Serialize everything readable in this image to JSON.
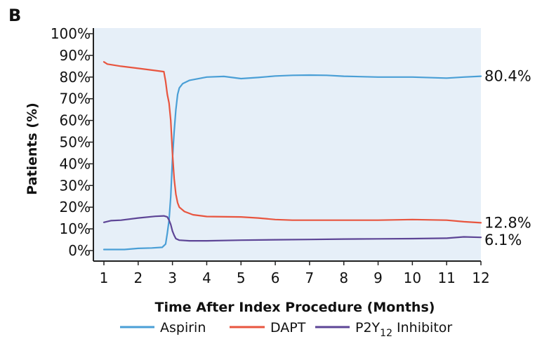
{
  "panel_label": "B",
  "colors": {
    "plot_background": "#e6eff8",
    "axis": "#222222",
    "aspirin": "#4a9fd6",
    "dapt": "#e8553f",
    "p2y12": "#5d4596"
  },
  "chart_data": {
    "type": "line",
    "title": "",
    "xlabel": "Time After Index Procedure (Months)",
    "ylabel": "Patients (%)",
    "xlim": [
      1,
      12
    ],
    "ylim": [
      0,
      100
    ],
    "grid": false,
    "legend_position": "bottom",
    "x_ticks": [
      1,
      2,
      3,
      4,
      5,
      6,
      7,
      8,
      9,
      10,
      11,
      12
    ],
    "y_ticks": [
      0,
      10,
      20,
      30,
      40,
      50,
      60,
      70,
      80,
      90,
      100
    ],
    "y_tick_labels": [
      "0%",
      "10%",
      "20%",
      "30%",
      "40%",
      "50%",
      "60%",
      "70%",
      "80%",
      "90%",
      "100%"
    ],
    "series": [
      {
        "name": "Aspirin",
        "color": "#4a9fd6",
        "end_label": "80.4%",
        "points": [
          [
            1.0,
            0.5
          ],
          [
            1.6,
            0.5
          ],
          [
            2.0,
            1.0
          ],
          [
            2.4,
            1.2
          ],
          [
            2.7,
            1.5
          ],
          [
            2.8,
            3.0
          ],
          [
            2.85,
            8.0
          ],
          [
            2.9,
            14.0
          ],
          [
            2.95,
            25.0
          ],
          [
            3.0,
            42.0
          ],
          [
            3.05,
            55.0
          ],
          [
            3.1,
            65.0
          ],
          [
            3.15,
            72.0
          ],
          [
            3.2,
            75.0
          ],
          [
            3.3,
            77.0
          ],
          [
            3.5,
            78.5
          ],
          [
            4.0,
            80.0
          ],
          [
            4.5,
            80.3
          ],
          [
            5.0,
            79.3
          ],
          [
            5.5,
            79.8
          ],
          [
            6.0,
            80.5
          ],
          [
            6.5,
            80.8
          ],
          [
            7.0,
            80.9
          ],
          [
            7.5,
            80.8
          ],
          [
            8.0,
            80.4
          ],
          [
            9.0,
            80.0
          ],
          [
            10.0,
            80.0
          ],
          [
            11.0,
            79.5
          ],
          [
            11.5,
            80.0
          ],
          [
            12.0,
            80.4
          ]
        ]
      },
      {
        "name": "DAPT",
        "color": "#e8553f",
        "end_label": "12.8%",
        "points": [
          [
            1.0,
            87.0
          ],
          [
            1.1,
            86.0
          ],
          [
            1.5,
            85.0
          ],
          [
            2.0,
            84.0
          ],
          [
            2.5,
            83.0
          ],
          [
            2.75,
            82.5
          ],
          [
            2.8,
            78.0
          ],
          [
            2.85,
            72.0
          ],
          [
            2.9,
            68.0
          ],
          [
            2.95,
            60.0
          ],
          [
            3.0,
            45.0
          ],
          [
            3.05,
            33.0
          ],
          [
            3.1,
            26.0
          ],
          [
            3.15,
            22.0
          ],
          [
            3.2,
            20.0
          ],
          [
            3.35,
            18.0
          ],
          [
            3.6,
            16.5
          ],
          [
            4.0,
            15.7
          ],
          [
            5.0,
            15.5
          ],
          [
            5.5,
            15.0
          ],
          [
            6.0,
            14.3
          ],
          [
            6.5,
            14.0
          ],
          [
            7.0,
            14.0
          ],
          [
            8.0,
            14.0
          ],
          [
            9.0,
            14.0
          ],
          [
            10.0,
            14.3
          ],
          [
            11.0,
            14.0
          ],
          [
            11.5,
            13.3
          ],
          [
            12.0,
            12.8
          ]
        ]
      },
      {
        "name": "P2Y12 Inhibitor",
        "color": "#5d4596",
        "end_label": "6.1%",
        "points": [
          [
            1.0,
            13.0
          ],
          [
            1.2,
            13.8
          ],
          [
            1.5,
            14.0
          ],
          [
            2.0,
            15.0
          ],
          [
            2.5,
            15.8
          ],
          [
            2.75,
            16.0
          ],
          [
            2.85,
            15.5
          ],
          [
            2.9,
            14.0
          ],
          [
            2.95,
            12.0
          ],
          [
            3.0,
            9.0
          ],
          [
            3.05,
            7.0
          ],
          [
            3.1,
            5.5
          ],
          [
            3.2,
            4.8
          ],
          [
            3.5,
            4.5
          ],
          [
            4.0,
            4.5
          ],
          [
            5.0,
            4.8
          ],
          [
            6.0,
            5.0
          ],
          [
            7.0,
            5.1
          ],
          [
            8.0,
            5.3
          ],
          [
            9.0,
            5.4
          ],
          [
            10.0,
            5.5
          ],
          [
            11.0,
            5.7
          ],
          [
            11.5,
            6.3
          ],
          [
            12.0,
            6.1
          ]
        ]
      }
    ]
  },
  "legend": {
    "items": [
      {
        "label": "Aspirin",
        "color": "#4a9fd6"
      },
      {
        "label": "DAPT",
        "color": "#e8553f"
      },
      {
        "label_main": "P2Y",
        "label_sub": "12",
        "label_tail": " Inhibitor",
        "color": "#5d4596"
      }
    ]
  }
}
